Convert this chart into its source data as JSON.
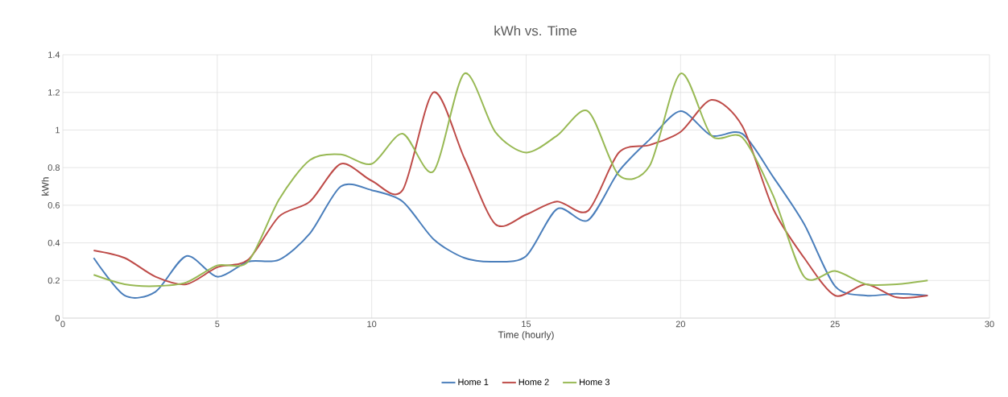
{
  "chart_data": {
    "type": "line",
    "title": "kWh vs. Time",
    "xlabel": "Time (hourly)",
    "ylabel": "kWh",
    "x": [
      1,
      2,
      3,
      4,
      5,
      6,
      7,
      8,
      9,
      10,
      11,
      12,
      13,
      14,
      15,
      16,
      17,
      18,
      19,
      20,
      21,
      22,
      23,
      24,
      25,
      26,
      27,
      28
    ],
    "series": [
      {
        "name": "Home 1",
        "color": "#4a7ebb",
        "values": [
          0.32,
          0.12,
          0.14,
          0.33,
          0.22,
          0.3,
          0.31,
          0.45,
          0.7,
          0.68,
          0.62,
          0.42,
          0.32,
          0.3,
          0.33,
          0.58,
          0.52,
          0.78,
          0.95,
          1.1,
          0.97,
          0.98,
          0.75,
          0.5,
          0.17,
          0.12,
          0.13,
          0.12
        ]
      },
      {
        "name": "Home 2",
        "color": "#be4b48",
        "values": [
          0.36,
          0.32,
          0.22,
          0.18,
          0.27,
          0.31,
          0.54,
          0.62,
          0.82,
          0.73,
          0.68,
          1.2,
          0.85,
          0.5,
          0.55,
          0.62,
          0.57,
          0.88,
          0.92,
          0.99,
          1.16,
          1.02,
          0.58,
          0.32,
          0.12,
          0.18,
          0.11,
          0.12
        ]
      },
      {
        "name": "Home 3",
        "color": "#98b954",
        "values": [
          0.23,
          0.18,
          0.17,
          0.19,
          0.28,
          0.3,
          0.63,
          0.84,
          0.87,
          0.82,
          0.98,
          0.78,
          1.3,
          0.99,
          0.88,
          0.97,
          1.1,
          0.76,
          0.81,
          1.3,
          0.97,
          0.96,
          0.65,
          0.22,
          0.25,
          0.18,
          0.18,
          0.2
        ]
      }
    ],
    "xlim": [
      0,
      30
    ],
    "ylim": [
      0,
      1.4
    ],
    "xticks": [
      0,
      5,
      10,
      15,
      20,
      25,
      30
    ],
    "yticks": [
      0,
      0.2,
      0.4,
      0.6,
      0.8,
      1,
      1.2,
      1.4
    ],
    "grid": true,
    "legend": "bottom"
  }
}
